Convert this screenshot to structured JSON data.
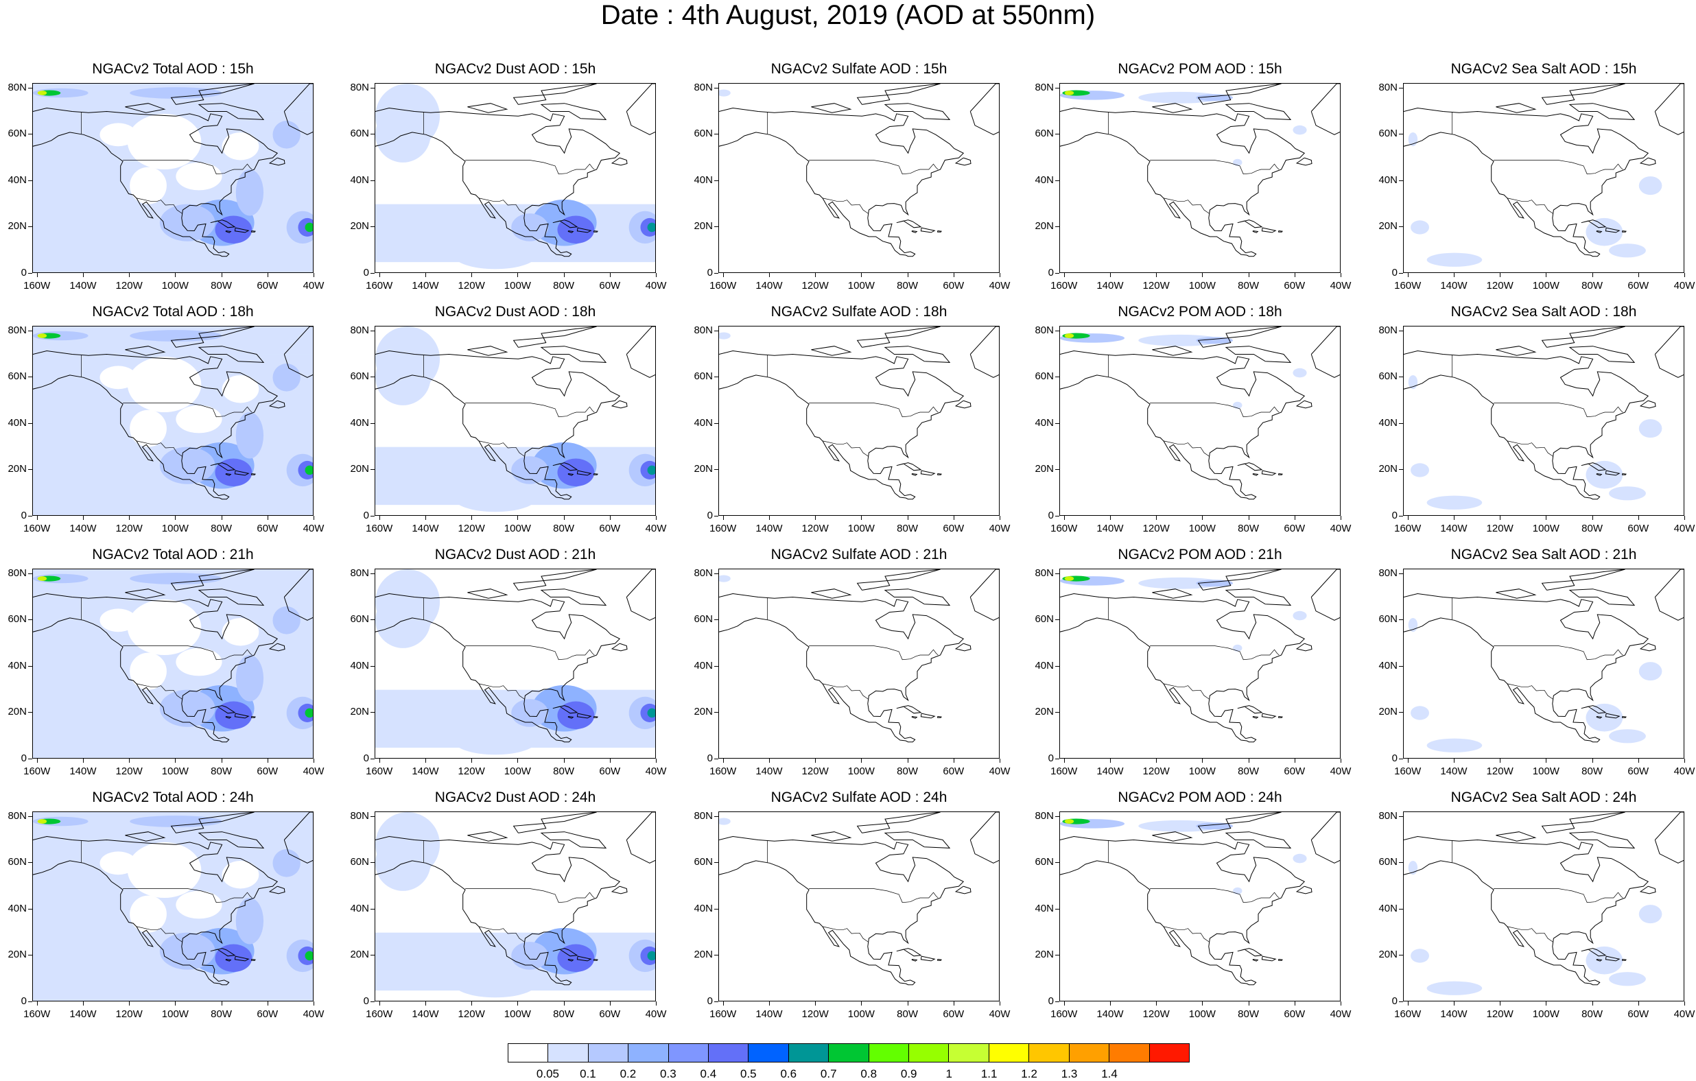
{
  "title": "Date : 4th August, 2019 (AOD at 550nm)",
  "rows": [
    {
      "hour": "15h",
      "panels": [
        {
          "title": "NGACv2 Total AOD : 15h",
          "species": "total"
        },
        {
          "title": "NGACv2 Dust AOD : 15h",
          "species": "dust"
        },
        {
          "title": "NGACv2 Sulfate AOD : 15h",
          "species": "sulfate"
        },
        {
          "title": "NGACv2 POM AOD : 15h",
          "species": "pom"
        },
        {
          "title": "NGACv2 Sea Salt AOD : 15h",
          "species": "seasalt"
        }
      ]
    },
    {
      "hour": "18h",
      "panels": [
        {
          "title": "NGACv2 Total AOD : 18h",
          "species": "total"
        },
        {
          "title": "NGACv2 Dust AOD : 18h",
          "species": "dust"
        },
        {
          "title": "NGACv2 Sulfate AOD : 18h",
          "species": "sulfate"
        },
        {
          "title": "NGACv2 POM AOD : 18h",
          "species": "pom"
        },
        {
          "title": "NGACv2 Sea Salt AOD : 18h",
          "species": "seasalt"
        }
      ]
    },
    {
      "hour": "21h",
      "panels": [
        {
          "title": "NGACv2 Total AOD : 21h",
          "species": "total"
        },
        {
          "title": "NGACv2 Dust AOD : 21h",
          "species": "dust"
        },
        {
          "title": "NGACv2 Sulfate AOD : 21h",
          "species": "sulfate"
        },
        {
          "title": "NGACv2 POM AOD : 21h",
          "species": "pom"
        },
        {
          "title": "NGACv2 Sea Salt AOD : 21h",
          "species": "seasalt"
        }
      ]
    },
    {
      "hour": "24h",
      "panels": [
        {
          "title": "NGACv2 Total AOD : 24h",
          "species": "total"
        },
        {
          "title": "NGACv2 Dust AOD : 24h",
          "species": "dust"
        },
        {
          "title": "NGACv2 Sulfate AOD : 24h",
          "species": "sulfate"
        },
        {
          "title": "NGACv2 POM AOD : 24h",
          "species": "pom"
        },
        {
          "title": "NGACv2 Sea Salt  AOD : 24h",
          "species": "seasalt"
        }
      ]
    }
  ],
  "y_ticks": [
    "80N",
    "60N",
    "40N",
    "20N",
    "0"
  ],
  "x_ticks": [
    "160W",
    "140W",
    "120W",
    "100W",
    "80W",
    "60W",
    "40W"
  ],
  "colorbar": {
    "labels": [
      "0.05",
      "0.1",
      "0.2",
      "0.3",
      "0.4",
      "0.5",
      "0.6",
      "0.7",
      "0.8",
      "0.9",
      "1",
      "1.1",
      "1.2",
      "1.3",
      "1.4"
    ],
    "colors": [
      "#ffffff",
      "#d6e2ff",
      "#b5c9ff",
      "#8eb2ff",
      "#7f96ff",
      "#6370f8",
      "#0063ff",
      "#009696",
      "#00c633",
      "#63ff00",
      "#96ff00",
      "#c6ff33",
      "#ffff00",
      "#ffc600",
      "#ffa000",
      "#ff7c00",
      "#ff1900"
    ]
  }
}
